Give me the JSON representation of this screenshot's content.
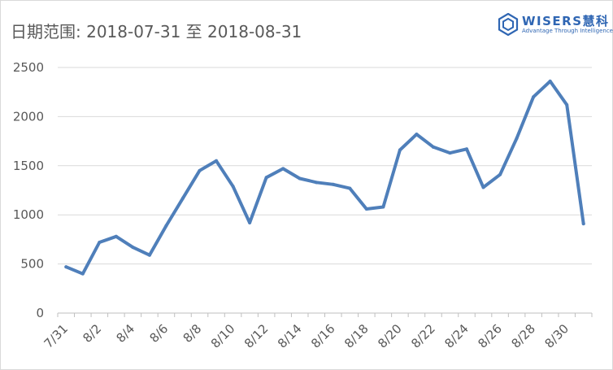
{
  "header": {
    "title": "日期范围: 2018-07-31 至 2018-08-31"
  },
  "brand": {
    "name": "WISERS慧科",
    "tagline": "Advantage Through Intelligence",
    "color": "#2f66b3",
    "icon": "hexagon-logo-icon"
  },
  "chart_data": {
    "type": "line",
    "title": "日期范围: 2018-07-31 至 2018-08-31",
    "xlabel": "",
    "ylabel": "",
    "ylim": [
      0,
      2500
    ],
    "yticks": [
      "0",
      "500",
      "1000",
      "1500",
      "2000",
      "2500"
    ],
    "grid": true,
    "legend": "none",
    "line_color": "#4f7fba",
    "x": [
      "7/31",
      "8/1",
      "8/2",
      "8/3",
      "8/4",
      "8/5",
      "8/6",
      "8/7",
      "8/8",
      "8/9",
      "8/10",
      "8/11",
      "8/12",
      "8/13",
      "8/14",
      "8/15",
      "8/16",
      "8/17",
      "8/18",
      "8/19",
      "8/20",
      "8/21",
      "8/22",
      "8/23",
      "8/24",
      "8/25",
      "8/26",
      "8/27",
      "8/28",
      "8/29",
      "8/30",
      "8/31"
    ],
    "xtick_labels": [
      "7/31",
      "8/2",
      "8/4",
      "8/6",
      "8/8",
      "8/10",
      "8/12",
      "8/14",
      "8/16",
      "8/18",
      "8/20",
      "8/22",
      "8/24",
      "8/26",
      "8/28",
      "8/30"
    ],
    "series": [
      {
        "values": [
          470,
          400,
          720,
          780,
          670,
          590,
          890,
          1170,
          1450,
          1550,
          1290,
          920,
          1380,
          1470,
          1370,
          1330,
          1310,
          1270,
          1060,
          1080,
          1660,
          1820,
          1690,
          1630,
          1670,
          1280,
          1410,
          1780,
          2200,
          2360,
          2120,
          910
        ]
      }
    ]
  }
}
